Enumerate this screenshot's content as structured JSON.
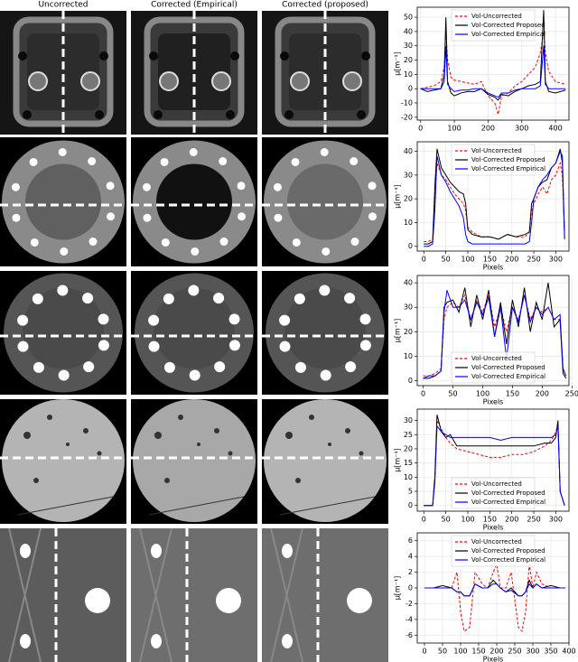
{
  "column_headers": [
    "Uncorrected",
    "Corrected (Empirical)",
    "Corrected (proposed)"
  ],
  "chart_data": [
    {
      "type": "line",
      "ylabel": "μ[m⁻¹]",
      "legend": "upper center",
      "grid": true,
      "xlim": [
        -10,
        440
      ],
      "xticks": [
        0,
        100,
        200,
        300,
        400
      ],
      "ylim": [
        -22,
        57
      ],
      "yticks": [
        -20,
        -10,
        0,
        10,
        20,
        30,
        40,
        50
      ],
      "x": [
        0,
        20,
        40,
        60,
        70,
        75,
        80,
        90,
        100,
        120,
        140,
        160,
        180,
        200,
        220,
        230,
        240,
        260,
        280,
        300,
        320,
        340,
        355,
        365,
        370,
        380,
        400,
        430
      ],
      "series": [
        {
          "name": "Vol-Uncorrected",
          "color": "#ff0000",
          "linestyle": "dashed",
          "values": [
            0,
            1,
            2,
            5,
            15,
            40,
            20,
            8,
            6,
            5,
            4,
            3,
            5,
            -5,
            -10,
            -18,
            -5,
            -3,
            2,
            5,
            10,
            15,
            25,
            40,
            25,
            12,
            5,
            3
          ]
        },
        {
          "name": "Vol-Corrected Proposed",
          "color": "#000000",
          "linestyle": "solid",
          "values": [
            0,
            -2,
            -1,
            0,
            10,
            50,
            5,
            -3,
            -5,
            -3,
            -2,
            -2,
            0,
            -4,
            -6,
            -8,
            -4,
            -5,
            -2,
            0,
            2,
            3,
            5,
            55,
            5,
            -2,
            -3,
            -1
          ]
        },
        {
          "name": "Vol-Corrected Empirical",
          "color": "#0000ff",
          "linestyle": "solid",
          "values": [
            0,
            0,
            0,
            0,
            5,
            30,
            3,
            0,
            -2,
            -1,
            -1,
            0,
            0,
            -3,
            -5,
            -6,
            -3,
            -3,
            -1,
            0,
            0,
            0,
            2,
            30,
            3,
            0,
            0,
            0
          ]
        }
      ]
    },
    {
      "type": "line",
      "ylabel": "μ[m⁻¹]",
      "xlabel": "Pixels",
      "legend": "upper center",
      "grid": true,
      "xlim": [
        -15,
        330
      ],
      "xticks": [
        0,
        50,
        100,
        150,
        200,
        250,
        300
      ],
      "ylim": [
        -2,
        44
      ],
      "yticks": [
        0,
        10,
        20,
        30,
        40
      ],
      "x": [
        0,
        10,
        20,
        25,
        30,
        40,
        50,
        60,
        70,
        80,
        90,
        95,
        100,
        110,
        130,
        150,
        170,
        190,
        210,
        230,
        240,
        245,
        250,
        260,
        270,
        280,
        290,
        300,
        310,
        315,
        320
      ],
      "series": [
        {
          "name": "Vol-Uncorrected",
          "color": "#ff0000",
          "linestyle": "dashed",
          "values": [
            2,
            2,
            3,
            20,
            35,
            30,
            28,
            25,
            22,
            20,
            18,
            15,
            8,
            6,
            4,
            4,
            3,
            5,
            4,
            4,
            6,
            15,
            18,
            22,
            25,
            22,
            28,
            30,
            35,
            30,
            5
          ]
        },
        {
          "name": "Vol-Corrected Proposed",
          "color": "#000000",
          "linestyle": "solid",
          "values": [
            1,
            1,
            2,
            25,
            41,
            33,
            30,
            27,
            25,
            23,
            22,
            18,
            7,
            5,
            4,
            4,
            3,
            5,
            4,
            5,
            6,
            18,
            20,
            25,
            27,
            28,
            33,
            35,
            41,
            35,
            3
          ]
        },
        {
          "name": "Vol-Corrected Empirical",
          "color": "#0000ff",
          "linestyle": "solid",
          "values": [
            0,
            0,
            1,
            15,
            38,
            30,
            27,
            23,
            20,
            17,
            12,
            5,
            2,
            1,
            1,
            1,
            1,
            1,
            1,
            1,
            2,
            10,
            20,
            25,
            28,
            30,
            33,
            35,
            40,
            38,
            4
          ]
        }
      ]
    },
    {
      "type": "line",
      "ylabel": "μ[m⁻¹]",
      "xlabel": "Pixels",
      "legend": "lower center",
      "grid": true,
      "xlim": [
        -10,
        245
      ],
      "xticks": [
        0,
        50,
        100,
        150,
        200,
        250
      ],
      "ylim": [
        -2,
        43
      ],
      "yticks": [
        0,
        10,
        20,
        30,
        40
      ],
      "x": [
        0,
        10,
        20,
        30,
        35,
        40,
        50,
        60,
        70,
        80,
        90,
        100,
        110,
        120,
        130,
        140,
        150,
        160,
        170,
        180,
        190,
        200,
        210,
        220,
        230,
        235,
        240
      ],
      "series": [
        {
          "name": "Vol-Uncorrected",
          "color": "#ff0000",
          "linestyle": "dashed",
          "values": [
            2,
            2,
            3,
            5,
            25,
            30,
            32,
            30,
            35,
            25,
            33,
            28,
            35,
            22,
            30,
            20,
            30,
            25,
            35,
            25,
            30,
            28,
            30,
            25,
            25,
            5,
            2
          ]
        },
        {
          "name": "Vol-Corrected Proposed",
          "color": "#000000",
          "linestyle": "solid",
          "values": [
            1,
            1,
            2,
            4,
            30,
            32,
            33,
            28,
            38,
            22,
            35,
            25,
            37,
            18,
            32,
            15,
            33,
            22,
            38,
            20,
            32,
            25,
            40,
            22,
            25,
            3,
            1
          ]
        },
        {
          "name": "Vol-Corrected Empirical",
          "color": "#0000ff",
          "linestyle": "solid",
          "values": [
            1,
            2,
            2,
            4,
            28,
            37,
            30,
            30,
            33,
            25,
            32,
            27,
            34,
            18,
            30,
            9,
            30,
            24,
            35,
            24,
            30,
            27,
            30,
            25,
            27,
            5,
            2
          ]
        }
      ]
    },
    {
      "type": "line",
      "ylabel": "μ[m⁻¹]",
      "xlabel": "Pixels",
      "legend": "lower center",
      "grid": true,
      "xlim": [
        -15,
        330
      ],
      "xticks": [
        0,
        50,
        100,
        150,
        200,
        250,
        300
      ],
      "ylim": [
        -2,
        34
      ],
      "yticks": [
        0,
        5,
        10,
        15,
        20,
        25,
        30
      ],
      "x": [
        0,
        10,
        20,
        25,
        30,
        40,
        50,
        60,
        75,
        100,
        125,
        150,
        175,
        200,
        225,
        250,
        275,
        290,
        300,
        305,
        310,
        320
      ],
      "series": [
        {
          "name": "Vol-Uncorrected",
          "color": "#ff0000",
          "linestyle": "dashed",
          "values": [
            0,
            0,
            0,
            10,
            30,
            27,
            24,
            22,
            20,
            19,
            18,
            17,
            17,
            18,
            18,
            19,
            21,
            23,
            26,
            28,
            5,
            0
          ]
        },
        {
          "name": "Vol-Corrected Proposed",
          "color": "#000000",
          "linestyle": "solid",
          "values": [
            0,
            0,
            0,
            10,
            32,
            26,
            24,
            25,
            21,
            21,
            21,
            21,
            21,
            21,
            21,
            21,
            22,
            22,
            24,
            30,
            5,
            0
          ]
        },
        {
          "name": "Vol-Corrected Empirical",
          "color": "#0000ff",
          "linestyle": "solid",
          "values": [
            0,
            0,
            0,
            8,
            28,
            26,
            25,
            24,
            24,
            24,
            24,
            24,
            23,
            24,
            24,
            24,
            24,
            24,
            25,
            28,
            5,
            0
          ]
        }
      ]
    },
    {
      "type": "line",
      "ylabel": "μ[m⁻¹]",
      "xlabel": "Pixels",
      "legend": "upper center",
      "grid": true,
      "xlim": [
        -20,
        400
      ],
      "xticks": [
        0,
        50,
        100,
        150,
        200,
        250,
        300,
        350,
        400
      ],
      "ylim": [
        -7,
        7
      ],
      "yticks": [
        -6,
        -4,
        -2,
        0,
        2,
        4,
        6
      ],
      "x": [
        0,
        25,
        50,
        75,
        90,
        100,
        110,
        125,
        140,
        160,
        175,
        190,
        200,
        210,
        225,
        240,
        260,
        270,
        280,
        290,
        300,
        310,
        325,
        350,
        375,
        390
      ],
      "series": [
        {
          "name": "Vol-Uncorrected",
          "color": "#ff0000",
          "linestyle": "dashed",
          "values": [
            0,
            0,
            0,
            0,
            2,
            -3,
            -5.5,
            -5,
            2,
            0.5,
            0,
            2,
            3,
            0,
            0,
            2,
            -5,
            -5.5,
            -3,
            3,
            0,
            2,
            0.5,
            0,
            0,
            0
          ]
        },
        {
          "name": "Vol-Corrected Proposed",
          "color": "#000000",
          "linestyle": "solid",
          "values": [
            0,
            0,
            0.3,
            0,
            -0.5,
            -0.5,
            -1,
            -1,
            0.5,
            0,
            0,
            1,
            0.5,
            0,
            -0.5,
            0,
            -1,
            -1,
            -0.5,
            1,
            0,
            0.5,
            0,
            0.3,
            0,
            0
          ]
        },
        {
          "name": "Vol-Corrected Empirical",
          "color": "#0000ff",
          "linestyle": "solid",
          "values": [
            0,
            0,
            0,
            0,
            -0.5,
            -0.5,
            -1,
            -1,
            0.5,
            0,
            0,
            0.5,
            0.5,
            0,
            -0.5,
            -0.3,
            -1,
            -1,
            -0.5,
            0.5,
            0,
            0.5,
            0,
            0,
            0,
            0
          ]
        }
      ]
    }
  ]
}
